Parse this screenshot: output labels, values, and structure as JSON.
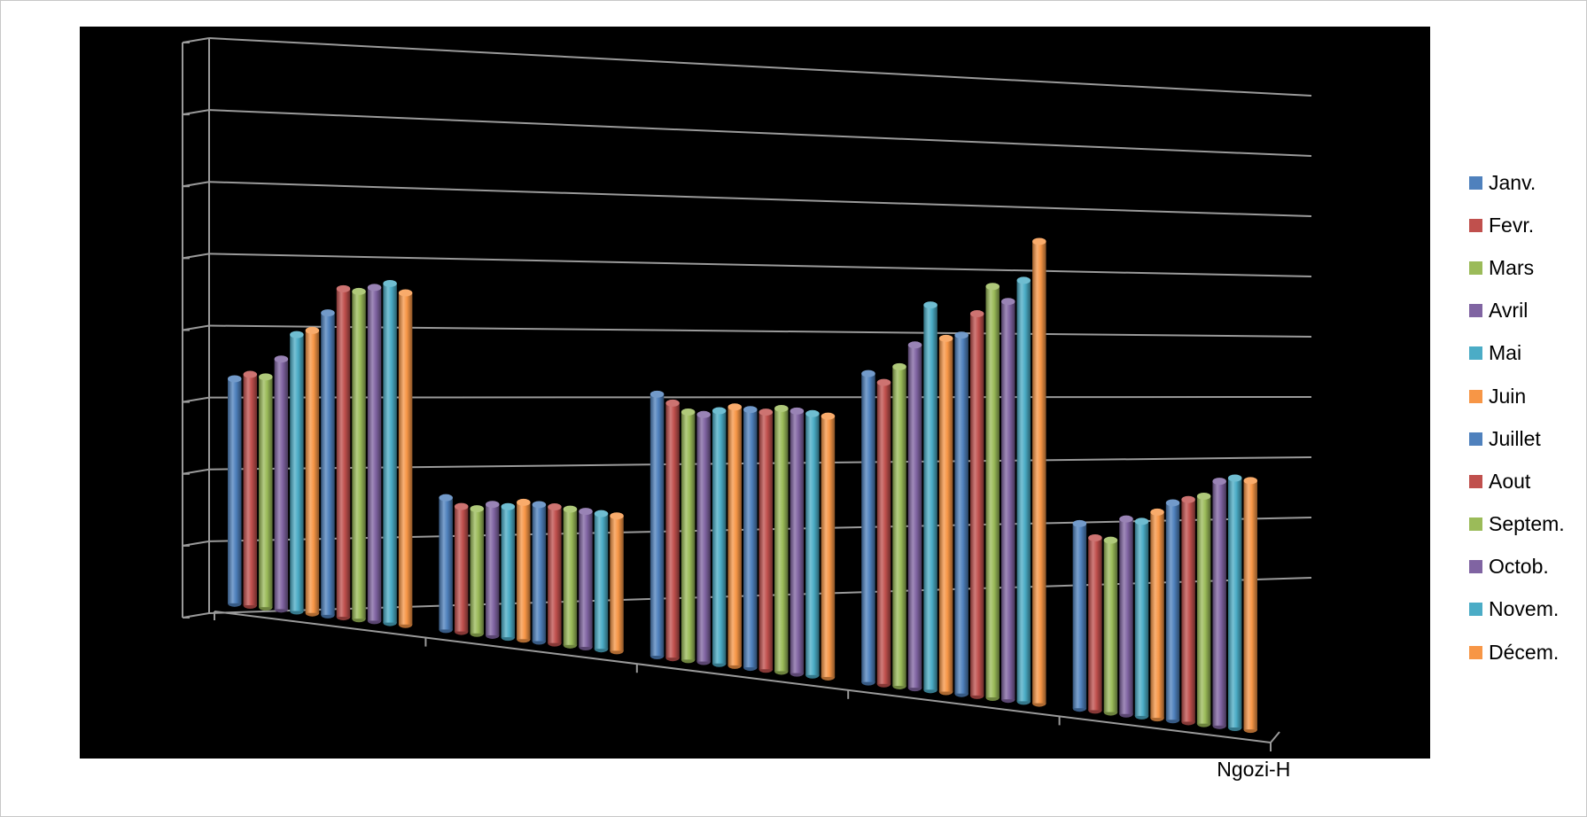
{
  "chart_data": {
    "type": "bar",
    "style": "3d-cylinder",
    "title": "",
    "xlabel": "",
    "ylabel": "",
    "ylim": [
      0,
      8
    ],
    "grid": true,
    "legend_position": "right",
    "categories": [
      "",
      "",
      "",
      "",
      "Ngozi-H"
    ],
    "series": [
      {
        "name": "Janv.",
        "color": "#4f81bd",
        "values": [
          3.3,
          2.0,
          4.1,
          5.0,
          3.1
        ]
      },
      {
        "name": "Fevr.",
        "color": "#c0504d",
        "values": [
          3.4,
          1.9,
          4.0,
          4.9,
          2.9
        ]
      },
      {
        "name": "Mars",
        "color": "#9bbb59",
        "values": [
          3.4,
          1.9,
          3.9,
          5.2,
          2.9
        ]
      },
      {
        "name": "Avril",
        "color": "#8064a2",
        "values": [
          3.7,
          2.0,
          3.9,
          5.6,
          3.3
        ]
      },
      {
        "name": "Mai",
        "color": "#4bacc6",
        "values": [
          4.1,
          2.0,
          4.0,
          6.3,
          3.3
        ]
      },
      {
        "name": "Juin",
        "color": "#f79646",
        "values": [
          4.2,
          2.1,
          4.1,
          5.8,
          3.5
        ]
      },
      {
        "name": "Juillet",
        "color": "#4f81bd",
        "values": [
          4.5,
          2.1,
          4.1,
          5.9,
          3.7
        ]
      },
      {
        "name": "Aout",
        "color": "#c0504d",
        "values": [
          4.9,
          2.1,
          4.1,
          6.3,
          3.8
        ]
      },
      {
        "name": "Septem.",
        "color": "#9bbb59",
        "values": [
          4.9,
          2.1,
          4.2,
          6.8,
          3.9
        ]
      },
      {
        "name": "Octob.",
        "color": "#8064a2",
        "values": [
          5.0,
          2.1,
          4.2,
          6.6,
          4.2
        ]
      },
      {
        "name": "Novem.",
        "color": "#4bacc6",
        "values": [
          5.1,
          2.1,
          4.2,
          7.0,
          4.3
        ]
      },
      {
        "name": "Décem.",
        "color": "#f79646",
        "values": [
          5.0,
          2.1,
          4.2,
          7.7,
          4.3
        ]
      }
    ]
  }
}
